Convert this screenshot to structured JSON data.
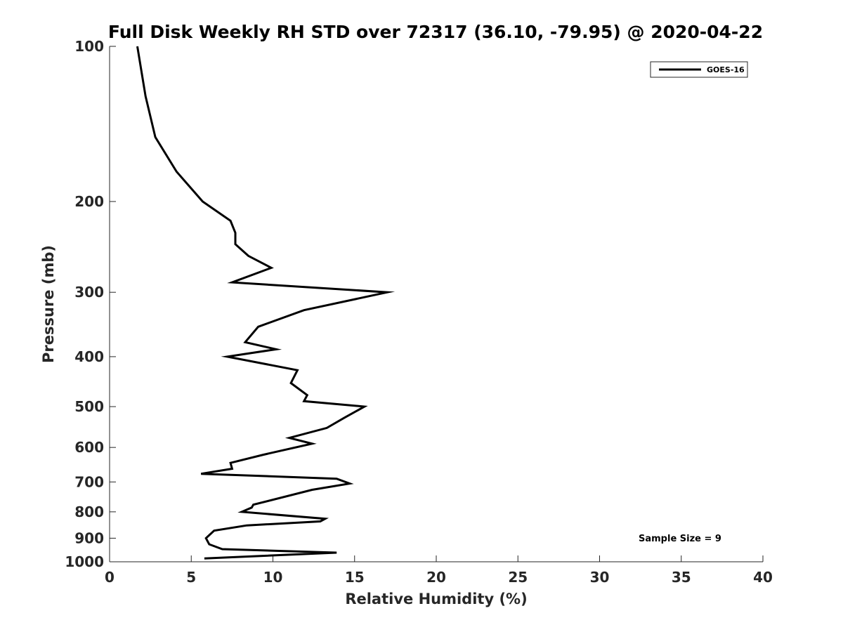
{
  "chart_data": {
    "type": "line",
    "title": "Full Disk Weekly RH STD over 72317 (36.10, -79.95) @ 2020-04-22",
    "xlabel": "Relative Humidity (%)",
    "ylabel": "Pressure (mb)",
    "xlim": [
      0,
      40
    ],
    "ylim": [
      100,
      1000
    ],
    "y_scale": "log",
    "y_reversed": true,
    "grid": false,
    "legend_position": "top-right",
    "x_ticks": [
      0,
      5,
      10,
      15,
      20,
      25,
      30,
      35,
      40
    ],
    "y_ticks": [
      100,
      200,
      300,
      400,
      500,
      600,
      700,
      800,
      900,
      1000
    ],
    "annotation": "Sample Size = 9",
    "series": [
      {
        "name": "GOES-16",
        "color": "#000000",
        "points": [
          [
            1.7,
            100
          ],
          [
            2.2,
            125
          ],
          [
            2.8,
            150
          ],
          [
            4.1,
            175
          ],
          [
            5.7,
            200
          ],
          [
            7.4,
            218
          ],
          [
            7.7,
            230
          ],
          [
            7.7,
            242
          ],
          [
            8.5,
            255
          ],
          [
            9.9,
            269
          ],
          [
            7.5,
            287
          ],
          [
            17.0,
            300
          ],
          [
            11.9,
            325
          ],
          [
            9.1,
            350
          ],
          [
            8.3,
            375
          ],
          [
            10.2,
            387
          ],
          [
            7.2,
            400
          ],
          [
            11.5,
            425
          ],
          [
            11.1,
            450
          ],
          [
            12.1,
            475
          ],
          [
            11.9,
            488
          ],
          [
            15.6,
            500
          ],
          [
            14.4,
            525
          ],
          [
            13.3,
            550
          ],
          [
            11.0,
            575
          ],
          [
            12.4,
            590
          ],
          [
            9.4,
            620
          ],
          [
            7.4,
            643
          ],
          [
            7.5,
            660
          ],
          [
            5.6,
            675
          ],
          [
            13.9,
            690
          ],
          [
            14.7,
            705
          ],
          [
            12.4,
            725
          ],
          [
            8.8,
            775
          ],
          [
            8.7,
            785
          ],
          [
            8.1,
            800
          ],
          [
            13.2,
            825
          ],
          [
            12.9,
            835
          ],
          [
            8.4,
            850
          ],
          [
            6.4,
            870
          ],
          [
            5.9,
            900
          ],
          [
            6.1,
            925
          ],
          [
            6.9,
            945
          ],
          [
            13.9,
            960
          ],
          [
            5.8,
            985
          ]
        ]
      }
    ]
  }
}
